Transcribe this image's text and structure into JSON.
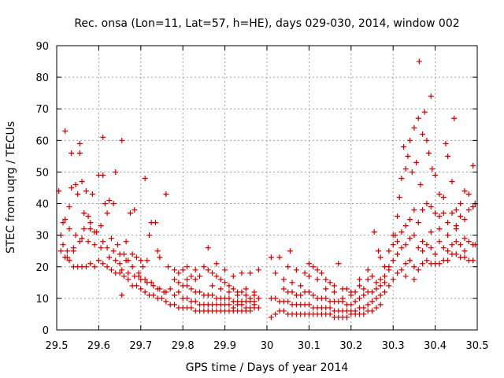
{
  "chart_data": {
    "type": "scatter",
    "title": "Rec. onsa (Lon=11, Lat=57, h=HE), days 029-030, 2014, window 002",
    "xlabel": "GPS time / Days of year 2014",
    "ylabel": "STEC from uqrg / TECUs",
    "xlim": [
      29.5,
      30.5
    ],
    "ylim": [
      0,
      90
    ],
    "xticks": [
      29.5,
      29.6,
      29.7,
      29.8,
      29.9,
      30.0,
      30.1,
      30.2,
      30.3,
      30.4,
      30.5
    ],
    "xtick_labels": [
      "29.5",
      "29.6",
      "29.7",
      "29.8",
      "29.9",
      "30",
      "30.1",
      "30.2",
      "30.3",
      "30.4",
      "30.5"
    ],
    "yticks": [
      0,
      10,
      20,
      30,
      40,
      50,
      60,
      70,
      80,
      90
    ],
    "ytick_labels": [
      "0",
      "10",
      "20",
      "30",
      "40",
      "50",
      "60",
      "70",
      "80",
      "90"
    ],
    "grid": true,
    "marker": "+",
    "color": "#cc0000",
    "points": [
      [
        29.505,
        44
      ],
      [
        29.51,
        30
      ],
      [
        29.515,
        27
      ],
      [
        29.52,
        63
      ],
      [
        29.52,
        35
      ],
      [
        29.525,
        23
      ],
      [
        29.53,
        39
      ],
      [
        29.535,
        56
      ],
      [
        29.535,
        45
      ],
      [
        29.54,
        25
      ],
      [
        29.545,
        46
      ],
      [
        29.55,
        43
      ],
      [
        29.555,
        59
      ],
      [
        29.555,
        56
      ],
      [
        29.56,
        47
      ],
      [
        29.565,
        37
      ],
      [
        29.57,
        44
      ],
      [
        29.575,
        36
      ],
      [
        29.58,
        32
      ],
      [
        29.585,
        43
      ],
      [
        29.59,
        31
      ],
      [
        29.6,
        49
      ],
      [
        29.605,
        33
      ],
      [
        29.61,
        61
      ],
      [
        29.61,
        49
      ],
      [
        29.615,
        40
      ],
      [
        29.62,
        37
      ],
      [
        29.625,
        41
      ],
      [
        29.63,
        29
      ],
      [
        29.635,
        40
      ],
      [
        29.64,
        50
      ],
      [
        29.645,
        27
      ],
      [
        29.65,
        21
      ],
      [
        29.655,
        60
      ],
      [
        29.66,
        24
      ],
      [
        29.665,
        28
      ],
      [
        29.67,
        22
      ],
      [
        29.675,
        37
      ],
      [
        29.68,
        24
      ],
      [
        29.685,
        38
      ],
      [
        29.69,
        23
      ],
      [
        29.695,
        17
      ],
      [
        29.7,
        22
      ],
      [
        29.705,
        20
      ],
      [
        29.71,
        48
      ],
      [
        29.715,
        22
      ],
      [
        29.72,
        30
      ],
      [
        29.725,
        34
      ],
      [
        29.735,
        34
      ],
      [
        29.74,
        25
      ],
      [
        29.745,
        23
      ],
      [
        29.76,
        43
      ],
      [
        29.765,
        20
      ],
      [
        29.51,
        25
      ],
      [
        29.52,
        23
      ],
      [
        29.53,
        22
      ],
      [
        29.54,
        20
      ],
      [
        29.55,
        20
      ],
      [
        29.56,
        20
      ],
      [
        29.57,
        20
      ],
      [
        29.58,
        21
      ],
      [
        29.59,
        20
      ],
      [
        29.6,
        22
      ],
      [
        29.61,
        21
      ],
      [
        29.62,
        20
      ],
      [
        29.63,
        19
      ],
      [
        29.64,
        18
      ],
      [
        29.65,
        18
      ],
      [
        29.66,
        17
      ],
      [
        29.67,
        16
      ],
      [
        29.68,
        14
      ],
      [
        29.69,
        14
      ],
      [
        29.7,
        13
      ],
      [
        29.71,
        12
      ],
      [
        29.72,
        11
      ],
      [
        29.73,
        11
      ],
      [
        29.74,
        10
      ],
      [
        29.75,
        10
      ],
      [
        29.655,
        11
      ],
      [
        29.515,
        34
      ],
      [
        29.53,
        32
      ],
      [
        29.545,
        30
      ],
      [
        29.56,
        29
      ],
      [
        29.575,
        28
      ],
      [
        29.59,
        27
      ],
      [
        29.605,
        26
      ],
      [
        29.62,
        26
      ],
      [
        29.635,
        25
      ],
      [
        29.65,
        24
      ],
      [
        29.665,
        22
      ],
      [
        29.68,
        20
      ],
      [
        29.695,
        18
      ],
      [
        29.71,
        16
      ],
      [
        29.725,
        15
      ],
      [
        29.74,
        13
      ],
      [
        29.755,
        12
      ],
      [
        29.525,
        25
      ],
      [
        29.54,
        26
      ],
      [
        29.555,
        28
      ],
      [
        29.565,
        32
      ],
      [
        29.58,
        34
      ],
      [
        29.595,
        31
      ],
      [
        29.61,
        28
      ],
      [
        29.625,
        23
      ],
      [
        29.64,
        22
      ],
      [
        29.655,
        19
      ],
      [
        29.67,
        18
      ],
      [
        29.685,
        17
      ],
      [
        29.7,
        16
      ],
      [
        29.715,
        15
      ],
      [
        29.73,
        14
      ],
      [
        29.745,
        13
      ],
      [
        29.76,
        12
      ],
      [
        29.76,
        9
      ],
      [
        29.77,
        8
      ],
      [
        29.78,
        8
      ],
      [
        29.79,
        7
      ],
      [
        29.8,
        7
      ],
      [
        29.81,
        7
      ],
      [
        29.82,
        7
      ],
      [
        29.83,
        6
      ],
      [
        29.84,
        6
      ],
      [
        29.85,
        6
      ],
      [
        29.86,
        6
      ],
      [
        29.87,
        6
      ],
      [
        29.88,
        6
      ],
      [
        29.89,
        6
      ],
      [
        29.9,
        6
      ],
      [
        29.91,
        6
      ],
      [
        29.92,
        6
      ],
      [
        29.93,
        6
      ],
      [
        29.94,
        6
      ],
      [
        29.95,
        6
      ],
      [
        29.96,
        6
      ],
      [
        29.97,
        7
      ],
      [
        29.98,
        7
      ],
      [
        29.77,
        13
      ],
      [
        29.78,
        11
      ],
      [
        29.79,
        12
      ],
      [
        29.8,
        10
      ],
      [
        29.81,
        10
      ],
      [
        29.82,
        9
      ],
      [
        29.83,
        9
      ],
      [
        29.84,
        8
      ],
      [
        29.85,
        8
      ],
      [
        29.86,
        8
      ],
      [
        29.87,
        8
      ],
      [
        29.88,
        8
      ],
      [
        29.89,
        8
      ],
      [
        29.9,
        8
      ],
      [
        29.91,
        8
      ],
      [
        29.92,
        7
      ],
      [
        29.93,
        8
      ],
      [
        29.94,
        8
      ],
      [
        29.95,
        7
      ],
      [
        29.96,
        7
      ],
      [
        29.97,
        8
      ],
      [
        29.78,
        16
      ],
      [
        29.79,
        15
      ],
      [
        29.8,
        14
      ],
      [
        29.81,
        14
      ],
      [
        29.82,
        13
      ],
      [
        29.83,
        12
      ],
      [
        29.84,
        12
      ],
      [
        29.85,
        11
      ],
      [
        29.86,
        11
      ],
      [
        29.87,
        11
      ],
      [
        29.88,
        10
      ],
      [
        29.89,
        10
      ],
      [
        29.9,
        10
      ],
      [
        29.91,
        10
      ],
      [
        29.92,
        9
      ],
      [
        29.93,
        9
      ],
      [
        29.94,
        9
      ],
      [
        29.95,
        9
      ],
      [
        29.96,
        9
      ],
      [
        29.97,
        9
      ],
      [
        29.78,
        19
      ],
      [
        29.79,
        18
      ],
      [
        29.8,
        19
      ],
      [
        29.81,
        20
      ],
      [
        29.82,
        17
      ],
      [
        29.83,
        16
      ],
      [
        29.84,
        17
      ],
      [
        29.85,
        20
      ],
      [
        29.86,
        19
      ],
      [
        29.87,
        18
      ],
      [
        29.88,
        17
      ],
      [
        29.89,
        16
      ],
      [
        29.9,
        15
      ],
      [
        29.91,
        14
      ],
      [
        29.92,
        13
      ],
      [
        29.93,
        12
      ],
      [
        29.94,
        12
      ],
      [
        29.95,
        11
      ],
      [
        29.96,
        10
      ],
      [
        29.97,
        11
      ],
      [
        29.81,
        16
      ],
      [
        29.83,
        19
      ],
      [
        29.86,
        26
      ],
      [
        29.88,
        21
      ],
      [
        29.9,
        19
      ],
      [
        29.92,
        17
      ],
      [
        29.94,
        18
      ],
      [
        29.96,
        18
      ],
      [
        29.98,
        19
      ],
      [
        29.87,
        14
      ],
      [
        29.89,
        13
      ],
      [
        29.91,
        12
      ],
      [
        29.93,
        11
      ],
      [
        29.95,
        13
      ],
      [
        29.97,
        12
      ],
      [
        29.98,
        10
      ],
      [
        30.01,
        4
      ],
      [
        30.02,
        5
      ],
      [
        30.03,
        6
      ],
      [
        30.04,
        6
      ],
      [
        30.05,
        5
      ],
      [
        30.06,
        5
      ],
      [
        30.07,
        5
      ],
      [
        30.08,
        5
      ],
      [
        30.09,
        5
      ],
      [
        30.1,
        5
      ],
      [
        30.11,
        5
      ],
      [
        30.12,
        5
      ],
      [
        30.13,
        5
      ],
      [
        30.14,
        5
      ],
      [
        30.15,
        5
      ],
      [
        30.16,
        4
      ],
      [
        30.17,
        4
      ],
      [
        30.18,
        4
      ],
      [
        30.19,
        4
      ],
      [
        30.2,
        5
      ],
      [
        30.21,
        5
      ],
      [
        30.22,
        5
      ],
      [
        30.23,
        5
      ],
      [
        30.24,
        6
      ],
      [
        30.25,
        6
      ],
      [
        30.26,
        7
      ],
      [
        30.27,
        8
      ],
      [
        30.01,
        10
      ],
      [
        30.02,
        10
      ],
      [
        30.03,
        9
      ],
      [
        30.04,
        9
      ],
      [
        30.05,
        9
      ],
      [
        30.06,
        8
      ],
      [
        30.07,
        8
      ],
      [
        30.08,
        8
      ],
      [
        30.09,
        8
      ],
      [
        30.1,
        8
      ],
      [
        30.11,
        7
      ],
      [
        30.12,
        7
      ],
      [
        30.13,
        7
      ],
      [
        30.14,
        7
      ],
      [
        30.15,
        7
      ],
      [
        30.16,
        6
      ],
      [
        30.17,
        6
      ],
      [
        30.18,
        6
      ],
      [
        30.19,
        6
      ],
      [
        30.2,
        6
      ],
      [
        30.21,
        6
      ],
      [
        30.22,
        7
      ],
      [
        30.23,
        7
      ],
      [
        30.24,
        8
      ],
      [
        30.25,
        9
      ],
      [
        30.26,
        10
      ],
      [
        30.27,
        11
      ],
      [
        30.04,
        13
      ],
      [
        30.05,
        12
      ],
      [
        30.06,
        12
      ],
      [
        30.07,
        11
      ],
      [
        30.08,
        11
      ],
      [
        30.09,
        12
      ],
      [
        30.1,
        12
      ],
      [
        30.11,
        11
      ],
      [
        30.12,
        10
      ],
      [
        30.13,
        10
      ],
      [
        30.14,
        10
      ],
      [
        30.15,
        9
      ],
      [
        30.16,
        9
      ],
      [
        30.17,
        9
      ],
      [
        30.18,
        9
      ],
      [
        30.19,
        8
      ],
      [
        30.2,
        8
      ],
      [
        30.21,
        9
      ],
      [
        30.22,
        10
      ],
      [
        30.23,
        11
      ],
      [
        30.24,
        12
      ],
      [
        30.25,
        12
      ],
      [
        30.26,
        13
      ],
      [
        30.27,
        14
      ],
      [
        30.01,
        23
      ],
      [
        30.03,
        23
      ],
      [
        30.05,
        20
      ],
      [
        30.055,
        25
      ],
      [
        30.07,
        19
      ],
      [
        30.09,
        18
      ],
      [
        30.1,
        21
      ],
      [
        30.11,
        20
      ],
      [
        30.12,
        19
      ],
      [
        30.13,
        18
      ],
      [
        30.14,
        16
      ],
      [
        30.15,
        15
      ],
      [
        30.16,
        14
      ],
      [
        30.17,
        21
      ],
      [
        30.18,
        13
      ],
      [
        30.19,
        13
      ],
      [
        30.2,
        12
      ],
      [
        30.21,
        12
      ],
      [
        30.22,
        16
      ],
      [
        30.23,
        13
      ],
      [
        30.24,
        19
      ],
      [
        30.25,
        17
      ],
      [
        30.26,
        15
      ],
      [
        30.27,
        16
      ],
      [
        30.28,
        15
      ],
      [
        30.02,
        18
      ],
      [
        30.04,
        16
      ],
      [
        30.06,
        15
      ],
      [
        30.08,
        14
      ],
      [
        30.1,
        17
      ],
      [
        30.12,
        16
      ],
      [
        30.14,
        13
      ],
      [
        30.16,
        12
      ],
      [
        30.18,
        10
      ],
      [
        30.2,
        11
      ],
      [
        30.22,
        14
      ],
      [
        30.24,
        16
      ],
      [
        30.255,
        31
      ],
      [
        30.265,
        25
      ],
      [
        30.27,
        23
      ],
      [
        30.28,
        20
      ],
      [
        30.29,
        19
      ],
      [
        30.28,
        12
      ],
      [
        30.29,
        14
      ],
      [
        30.3,
        16
      ],
      [
        30.31,
        18
      ],
      [
        30.32,
        19
      ],
      [
        30.33,
        21
      ],
      [
        30.34,
        22
      ],
      [
        30.35,
        20
      ],
      [
        30.36,
        19
      ],
      [
        30.37,
        21
      ],
      [
        30.38,
        22
      ],
      [
        30.39,
        21
      ],
      [
        30.4,
        21
      ],
      [
        30.41,
        21
      ],
      [
        30.42,
        22
      ],
      [
        30.43,
        22
      ],
      [
        30.44,
        24
      ],
      [
        30.45,
        24
      ],
      [
        30.46,
        23
      ],
      [
        30.47,
        23
      ],
      [
        30.48,
        22
      ],
      [
        30.49,
        22
      ],
      [
        30.28,
        17
      ],
      [
        30.29,
        20
      ],
      [
        30.3,
        22
      ],
      [
        30.31,
        24
      ],
      [
        30.32,
        26
      ],
      [
        30.33,
        27
      ],
      [
        30.34,
        29
      ],
      [
        30.35,
        30
      ],
      [
        30.36,
        26
      ],
      [
        30.37,
        28
      ],
      [
        30.38,
        27
      ],
      [
        30.39,
        26
      ],
      [
        30.4,
        24
      ],
      [
        30.41,
        28
      ],
      [
        30.42,
        26
      ],
      [
        30.43,
        25
      ],
      [
        30.44,
        27
      ],
      [
        30.45,
        28
      ],
      [
        30.46,
        27
      ],
      [
        30.47,
        29
      ],
      [
        30.48,
        28
      ],
      [
        30.49,
        27
      ],
      [
        30.495,
        27
      ],
      [
        30.29,
        25
      ],
      [
        30.3,
        27
      ],
      [
        30.305,
        30
      ],
      [
        30.31,
        28
      ],
      [
        30.32,
        31
      ],
      [
        30.33,
        33
      ],
      [
        30.34,
        35
      ],
      [
        30.35,
        38
      ],
      [
        30.36,
        34
      ],
      [
        30.37,
        38
      ],
      [
        30.38,
        40
      ],
      [
        30.39,
        39
      ],
      [
        30.4,
        37
      ],
      [
        30.41,
        36
      ],
      [
        30.42,
        37
      ],
      [
        30.43,
        34
      ],
      [
        30.44,
        37
      ],
      [
        30.45,
        33
      ],
      [
        30.46,
        36
      ],
      [
        30.47,
        35
      ],
      [
        30.48,
        38
      ],
      [
        30.49,
        39
      ],
      [
        30.495,
        40
      ],
      [
        30.3,
        30
      ],
      [
        30.31,
        36
      ],
      [
        30.315,
        42
      ],
      [
        30.32,
        48
      ],
      [
        30.325,
        58
      ],
      [
        30.33,
        51
      ],
      [
        30.335,
        55
      ],
      [
        30.34,
        60
      ],
      [
        30.345,
        50
      ],
      [
        30.35,
        64
      ],
      [
        30.355,
        53
      ],
      [
        30.36,
        67
      ],
      [
        30.362,
        85
      ],
      [
        30.365,
        46
      ],
      [
        30.37,
        62
      ],
      [
        30.375,
        69
      ],
      [
        30.38,
        60
      ],
      [
        30.385,
        56
      ],
      [
        30.39,
        74
      ],
      [
        30.393,
        51
      ],
      [
        30.4,
        49
      ],
      [
        30.41,
        43
      ],
      [
        30.42,
        42
      ],
      [
        30.425,
        59
      ],
      [
        30.43,
        55
      ],
      [
        30.44,
        47
      ],
      [
        30.445,
        67
      ],
      [
        30.45,
        38
      ],
      [
        30.46,
        40
      ],
      [
        30.47,
        44
      ],
      [
        30.48,
        43
      ],
      [
        30.49,
        52
      ],
      [
        30.495,
        40
      ],
      [
        30.33,
        17
      ],
      [
        30.35,
        16
      ],
      [
        30.37,
        25
      ],
      [
        30.39,
        31
      ],
      [
        30.41,
        32
      ],
      [
        30.43,
        30
      ],
      [
        30.45,
        32
      ],
      [
        30.47,
        25
      ]
    ]
  }
}
